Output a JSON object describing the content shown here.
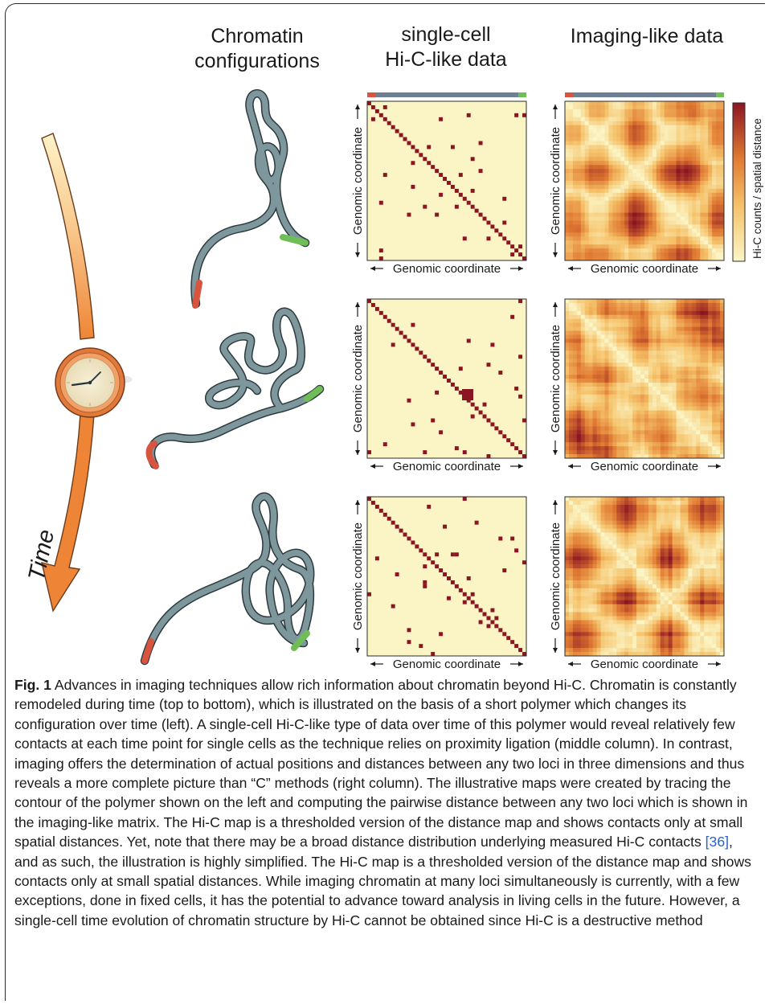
{
  "figure": {
    "headers": {
      "col1": "Chromatin configurations",
      "col1_line1": "Chromatin",
      "col1_line2": "configurations",
      "col2_line1": "single-cell",
      "col2_line2": "Hi-C-like data",
      "col3": "Imaging-like data"
    },
    "time_label": "Time",
    "axis_label": "Genomic coordinate",
    "colorbar_label": "Hi-C counts / spatial distance",
    "colors": {
      "heat_low": "#fbf5c6",
      "heat_high": "#8c1522",
      "contact": "#8c1522",
      "polymer": "#7e979c",
      "polymer_outline": "#2c3a3e",
      "end_red": "#d9543e",
      "end_green": "#6fbd57",
      "strip_grey": "#6f7f93"
    }
  },
  "caption": {
    "label": "Fig. 1",
    "text_before_ref": " Advances in imaging techniques allow rich information about chromatin beyond Hi-C. Chromatin is constantly remodeled during time (top to bottom), which is illustrated on the basis of a short polymer which changes its configuration over time (left). A single-cell Hi-C-like type of data over time of this polymer would reveal relatively few contacts at each time point for single cells as the technique relies on proximity ligation (middle column). In contrast, imaging offers the determination of actual positions and distances between any two loci in three dimensions and thus reveals a more complete picture than “C” methods (right column). The illustrative maps were created by tracing the contour of the polymer shown on the left and computing the pairwise distance between any two loci which is shown in the imaging-like matrix. The Hi-C map is a thresholded version of the distance map and shows contacts only at small spatial distances. Yet, note that there may be a broad distance distribution underlying measured Hi-C contacts ",
    "ref": "[36]",
    "text_after_ref": ", and as such, the illustration is highly simplified. The Hi-C map is a thresholded version of the distance map and shows contacts only at small spatial distances. While imaging chromatin at many loci simultaneously is currently, with a few exceptions, done in fixed cells, it has the potential to advance toward analysis in living cells in the future. However, a single-cell time evolution of chromatin structure by Hi-C cannot be obtained since Hi-C is a destructive method"
  }
}
